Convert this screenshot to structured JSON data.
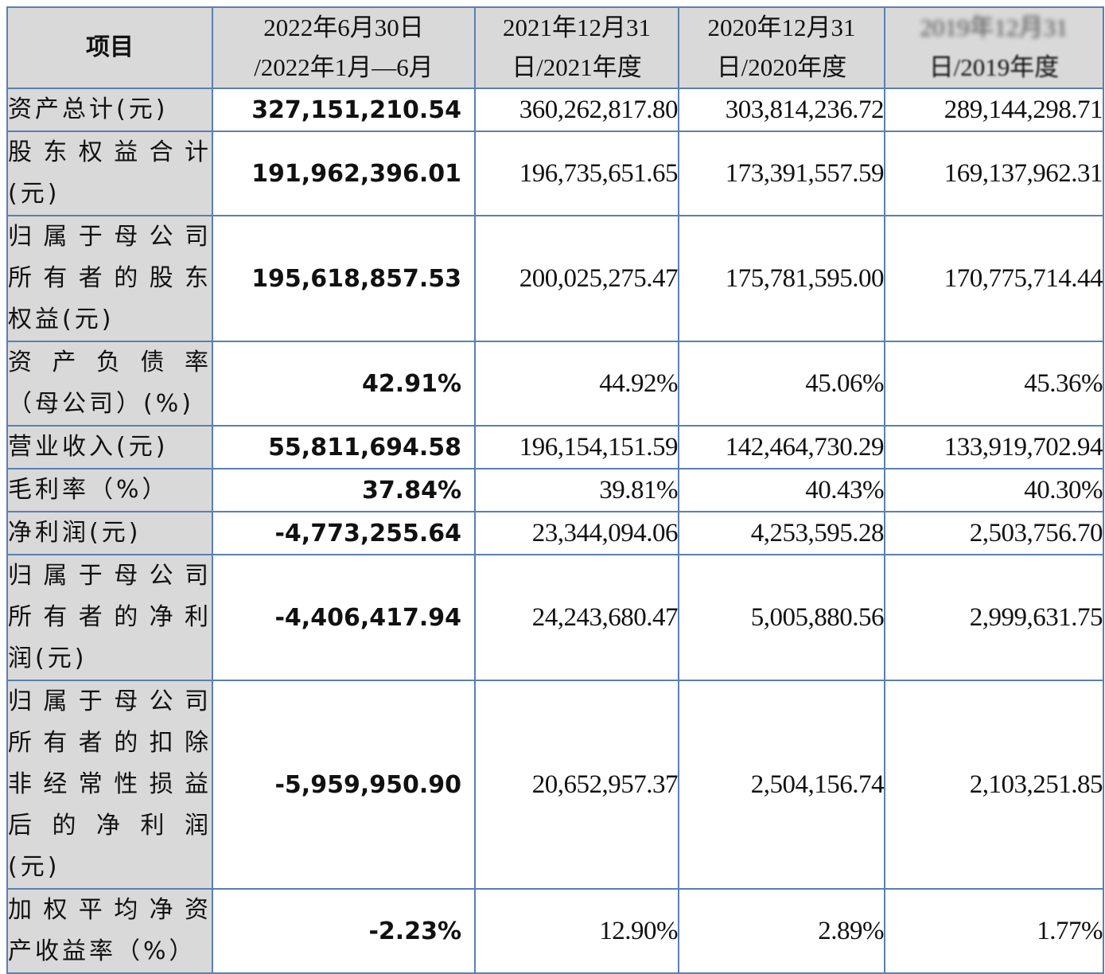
{
  "table": {
    "header": {
      "item": "项目",
      "columns": [
        {
          "line1": "2022年6月30日",
          "line2": "/2022年1月—6月"
        },
        {
          "line1": "2021年12月31",
          "line2": "日/2021年度"
        },
        {
          "line1": "2020年12月31",
          "line2": "日/2020年度"
        },
        {
          "line1": "2019年12月31",
          "line2": "日/2019年度",
          "obscured": true
        }
      ]
    },
    "rows": [
      {
        "label_lines": [
          "资产总计(元)"
        ],
        "values": [
          "327,151,210.54",
          "360,262,817.80",
          "303,814,236.72",
          "289,144,298.71"
        ]
      },
      {
        "label_lines": [
          "股东权益合计",
          "(元)"
        ],
        "values": [
          "191,962,396.01",
          "196,735,651.65",
          "173,391,557.59",
          "169,137,962.31"
        ]
      },
      {
        "label_lines": [
          "归属于母公司",
          "所有者的股东",
          "权益(元)"
        ],
        "values": [
          "195,618,857.53",
          "200,025,275.47",
          "175,781,595.00",
          "170,775,714.44"
        ]
      },
      {
        "label_lines": [
          "资产负债率",
          "（母公司）(%)"
        ],
        "values": [
          "42.91%",
          "44.92%",
          "45.06%",
          "45.36%"
        ]
      },
      {
        "label_lines": [
          "营业收入(元)"
        ],
        "values": [
          "55,811,694.58",
          "196,154,151.59",
          "142,464,730.29",
          "133,919,702.94"
        ]
      },
      {
        "label_lines": [
          "毛利率（%）"
        ],
        "values": [
          "37.84%",
          "39.81%",
          "40.43%",
          "40.30%"
        ]
      },
      {
        "label_lines": [
          "净利润(元)"
        ],
        "values": [
          "-4,773,255.64",
          "23,344,094.06",
          "4,253,595.28",
          "2,503,756.70"
        ]
      },
      {
        "label_lines": [
          "归属于母公司",
          "所有者的净利",
          "润(元)"
        ],
        "values": [
          "-4,406,417.94",
          "24,243,680.47",
          "5,005,880.56",
          "2,999,631.75"
        ]
      },
      {
        "label_lines": [
          "归属于母公司",
          "所有者的扣除",
          "非经常性损益",
          "后的净利润",
          "(元)"
        ],
        "values": [
          "-5,959,950.90",
          "20,652,957.37",
          "2,504,156.74",
          "2,103,251.85"
        ]
      },
      {
        "label_lines": [
          "加权平均净资",
          "产收益率（%）"
        ],
        "values": [
          "-2.23%",
          "12.90%",
          "2.89%",
          "1.77%"
        ]
      }
    ]
  },
  "colors": {
    "border": "#5b7fb0",
    "header_bg": "#d9d9d9",
    "label_bg": "#d9d9d9",
    "cell_bg": "#ffffff",
    "text": "#111111"
  }
}
